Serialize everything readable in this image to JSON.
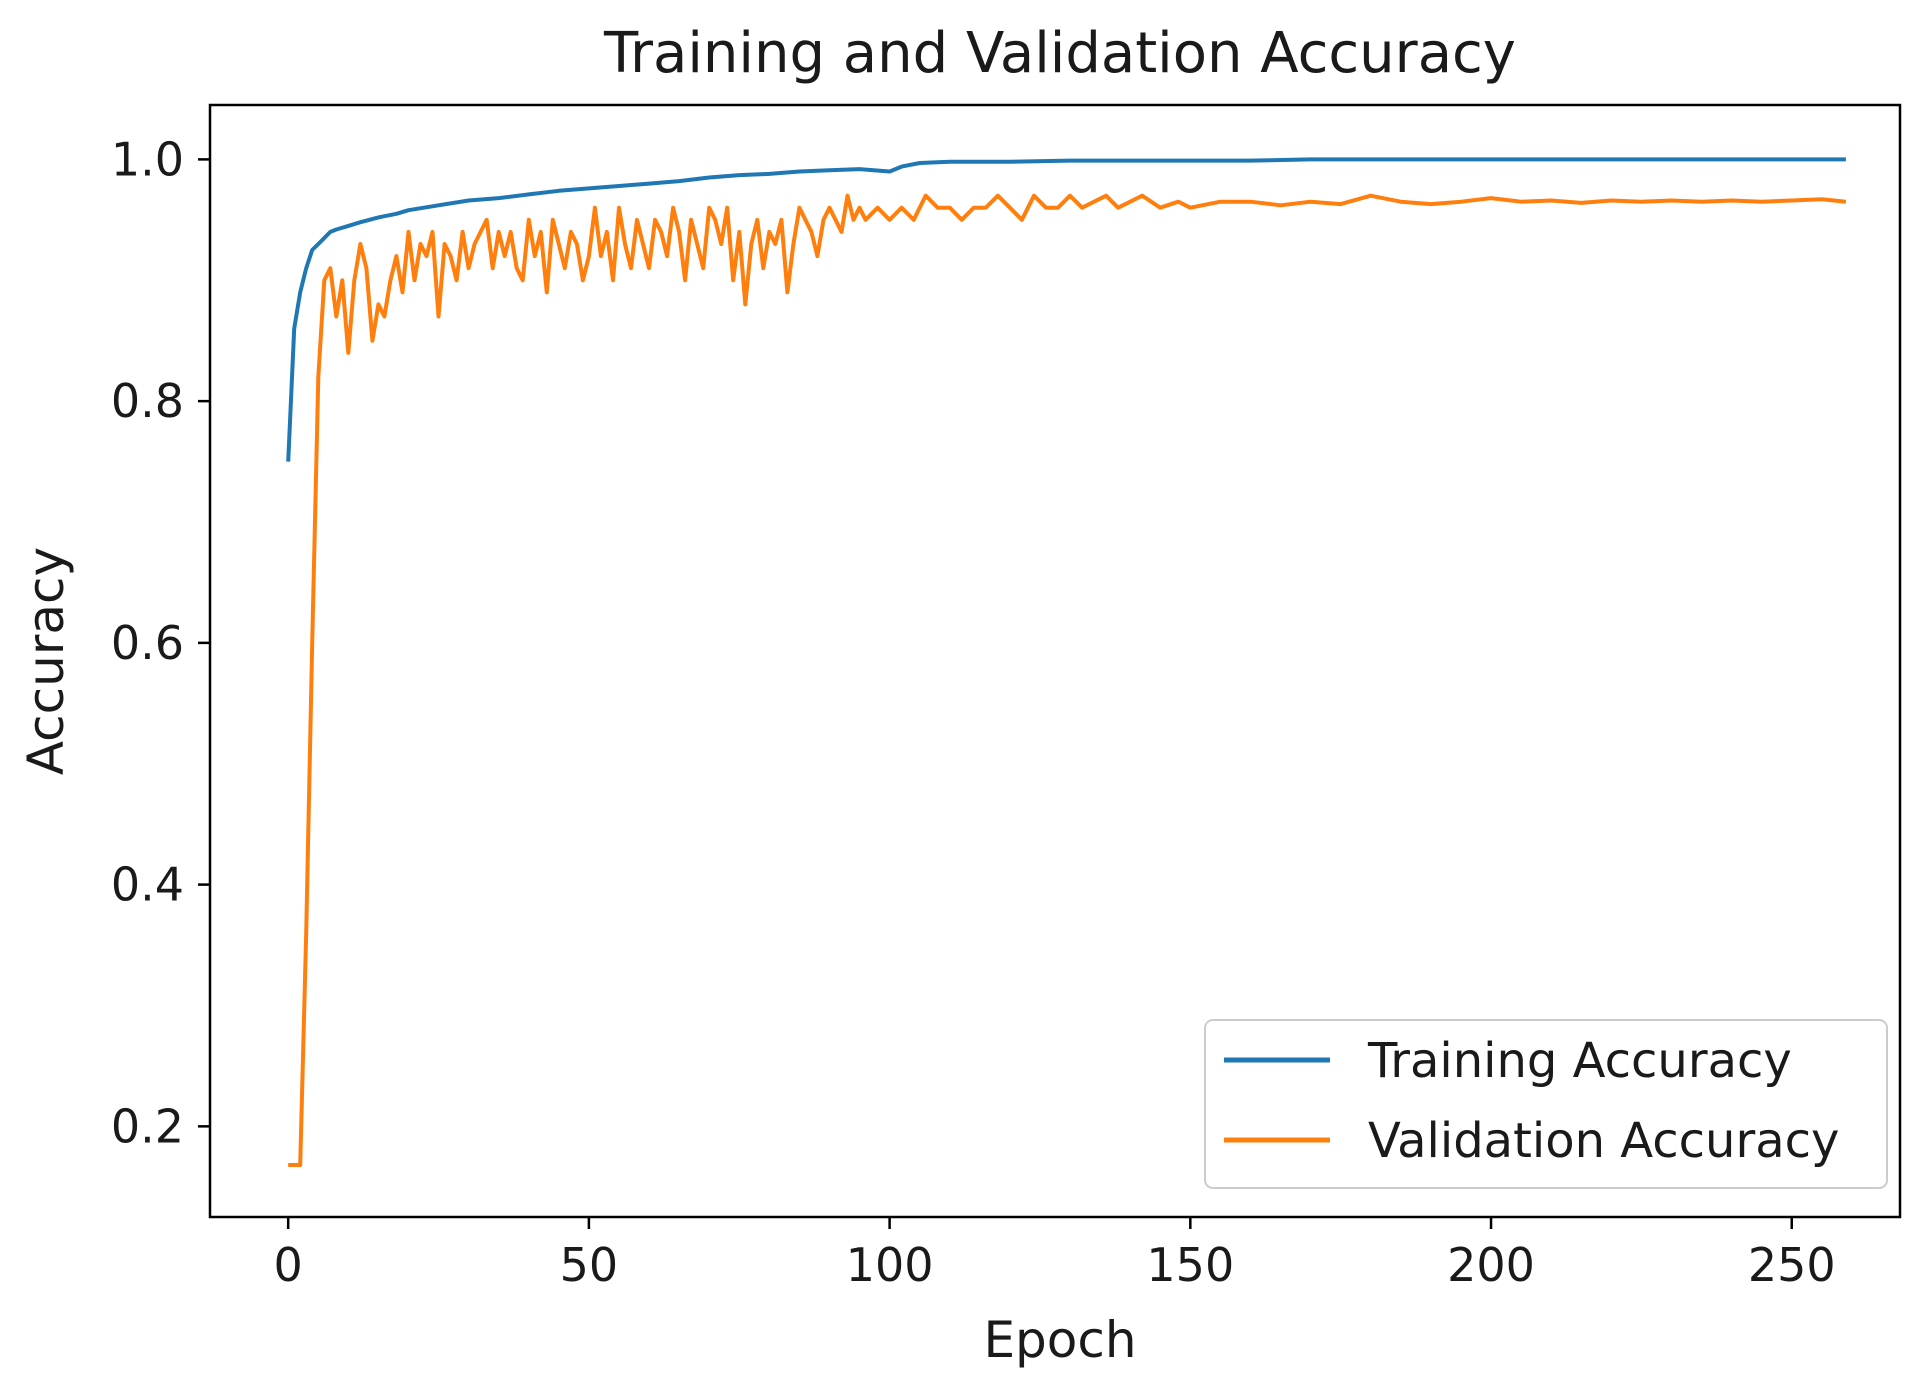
{
  "chart_data": {
    "type": "line",
    "title": "Training and Validation Accuracy",
    "xlabel": "Epoch",
    "ylabel": "Accuracy",
    "xlim": [
      -13,
      268
    ],
    "ylim": [
      0.125,
      1.045
    ],
    "xticks": [
      0,
      50,
      100,
      150,
      200,
      250
    ],
    "xtick_labels": [
      "0",
      "50",
      "100",
      "150",
      "200",
      "250"
    ],
    "yticks": [
      0.2,
      0.4,
      0.6,
      0.8,
      1.0
    ],
    "ytick_labels": [
      "0.2",
      "0.4",
      "0.6",
      "0.8",
      "1.0"
    ],
    "grid": false,
    "legend_position": "lower-right",
    "series": [
      {
        "name": "Training Accuracy",
        "color": "#1f77b4",
        "x": [
          0,
          1,
          2,
          3,
          4,
          5,
          6,
          7,
          8,
          10,
          12,
          15,
          18,
          20,
          25,
          30,
          35,
          40,
          45,
          50,
          55,
          60,
          65,
          70,
          75,
          80,
          85,
          90,
          95,
          100,
          102,
          105,
          110,
          120,
          130,
          140,
          150,
          160,
          170,
          180,
          190,
          200,
          210,
          220,
          230,
          240,
          250,
          259
        ],
        "y": [
          0.75,
          0.86,
          0.89,
          0.91,
          0.925,
          0.93,
          0.935,
          0.94,
          0.942,
          0.945,
          0.948,
          0.952,
          0.955,
          0.958,
          0.962,
          0.966,
          0.968,
          0.971,
          0.974,
          0.976,
          0.978,
          0.98,
          0.982,
          0.985,
          0.987,
          0.988,
          0.99,
          0.991,
          0.992,
          0.99,
          0.994,
          0.997,
          0.998,
          0.998,
          0.999,
          0.999,
          0.999,
          0.999,
          1.0,
          1.0,
          1.0,
          1.0,
          1.0,
          1.0,
          1.0,
          1.0,
          1.0,
          1.0
        ]
      },
      {
        "name": "Validation Accuracy",
        "color": "#ff7f0e",
        "x": [
          0,
          1,
          2,
          3,
          4,
          5,
          6,
          7,
          8,
          9,
          10,
          11,
          12,
          13,
          14,
          15,
          16,
          17,
          18,
          19,
          20,
          21,
          22,
          23,
          24,
          25,
          26,
          27,
          28,
          29,
          30,
          31,
          32,
          33,
          34,
          35,
          36,
          37,
          38,
          39,
          40,
          41,
          42,
          43,
          44,
          45,
          46,
          47,
          48,
          49,
          50,
          51,
          52,
          53,
          54,
          55,
          56,
          57,
          58,
          59,
          60,
          61,
          62,
          63,
          64,
          65,
          66,
          67,
          68,
          69,
          70,
          71,
          72,
          73,
          74,
          75,
          76,
          77,
          78,
          79,
          80,
          81,
          82,
          83,
          84,
          85,
          86,
          87,
          88,
          89,
          90,
          91,
          92,
          93,
          94,
          95,
          96,
          98,
          100,
          102,
          104,
          106,
          108,
          110,
          112,
          114,
          116,
          118,
          120,
          122,
          124,
          126,
          128,
          130,
          132,
          134,
          136,
          138,
          140,
          142,
          145,
          148,
          150,
          155,
          160,
          165,
          170,
          175,
          180,
          185,
          190,
          195,
          200,
          205,
          210,
          215,
          220,
          225,
          230,
          235,
          240,
          245,
          250,
          255,
          259
        ],
        "y": [
          0.168,
          0.168,
          0.168,
          0.36,
          0.6,
          0.82,
          0.9,
          0.91,
          0.87,
          0.9,
          0.84,
          0.9,
          0.93,
          0.91,
          0.85,
          0.88,
          0.87,
          0.9,
          0.92,
          0.89,
          0.94,
          0.9,
          0.93,
          0.92,
          0.94,
          0.87,
          0.93,
          0.92,
          0.9,
          0.94,
          0.91,
          0.93,
          0.94,
          0.95,
          0.91,
          0.94,
          0.92,
          0.94,
          0.91,
          0.9,
          0.95,
          0.92,
          0.94,
          0.89,
          0.95,
          0.93,
          0.91,
          0.94,
          0.93,
          0.9,
          0.92,
          0.96,
          0.92,
          0.94,
          0.9,
          0.96,
          0.93,
          0.91,
          0.95,
          0.93,
          0.91,
          0.95,
          0.94,
          0.92,
          0.96,
          0.94,
          0.9,
          0.95,
          0.93,
          0.91,
          0.96,
          0.95,
          0.93,
          0.96,
          0.9,
          0.94,
          0.88,
          0.93,
          0.95,
          0.91,
          0.94,
          0.93,
          0.95,
          0.89,
          0.93,
          0.96,
          0.95,
          0.94,
          0.92,
          0.95,
          0.96,
          0.95,
          0.94,
          0.97,
          0.95,
          0.96,
          0.95,
          0.96,
          0.95,
          0.96,
          0.95,
          0.97,
          0.96,
          0.96,
          0.95,
          0.96,
          0.96,
          0.97,
          0.96,
          0.95,
          0.97,
          0.96,
          0.96,
          0.97,
          0.96,
          0.965,
          0.97,
          0.96,
          0.965,
          0.97,
          0.96,
          0.965,
          0.96,
          0.965,
          0.965,
          0.962,
          0.965,
          0.963,
          0.97,
          0.965,
          0.963,
          0.965,
          0.968,
          0.965,
          0.966,
          0.964,
          0.966,
          0.965,
          0.966,
          0.965,
          0.966,
          0.965,
          0.966,
          0.967,
          0.965
        ]
      }
    ]
  }
}
